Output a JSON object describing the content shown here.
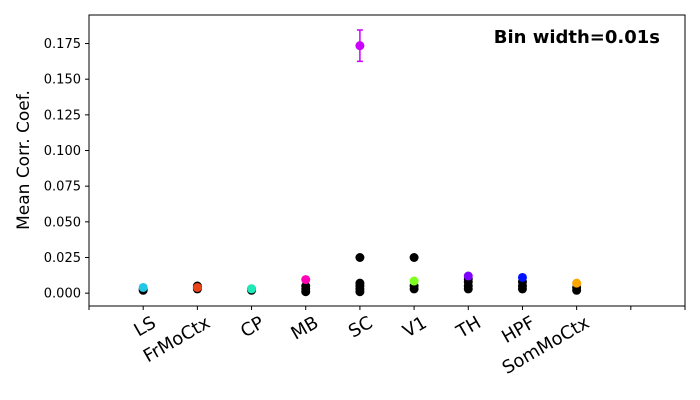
{
  "chart_data": {
    "type": "scatter",
    "title": "",
    "xlabel": "",
    "ylabel": "Mean Corr. Coef.",
    "annotation": "Bin width=0.01s",
    "annotation_position": "top-right",
    "grid": false,
    "legend": "none",
    "ylim": [
      -0.009,
      0.195
    ],
    "xlim": [
      -1,
      10
    ],
    "y_ticks": [
      "0.000",
      "0.025",
      "0.050",
      "0.075",
      "0.100",
      "0.125",
      "0.150",
      "0.175"
    ],
    "y_tick_values": [
      0.0,
      0.025,
      0.05,
      0.075,
      0.1,
      0.125,
      0.15,
      0.175
    ],
    "categories": [
      "LS",
      "FrMoCtx",
      "CP",
      "MB",
      "SC",
      "V1",
      "TH",
      "HPF",
      "SomMoCtx"
    ],
    "category_colors": [
      "#22c7e6",
      "#e8451a",
      "#1de9b6",
      "#ff00b4",
      "#cc00ff",
      "#7cff1e",
      "#7e00ff",
      "#0012ff",
      "#ffa500"
    ],
    "series": [
      {
        "color": "#000000",
        "points": [
          {
            "x": 0,
            "y": 0.002
          },
          {
            "x": 0,
            "y": 0.003
          },
          {
            "x": 1,
            "y": 0.003
          },
          {
            "x": 1,
            "y": 0.004
          },
          {
            "x": 1,
            "y": 0.005
          },
          {
            "x": 2,
            "y": 0.002
          },
          {
            "x": 2,
            "y": 0.003
          },
          {
            "x": 3,
            "y": 0.001
          },
          {
            "x": 3,
            "y": 0.003
          },
          {
            "x": 3,
            "y": 0.005
          },
          {
            "x": 4,
            "y": 0.025
          },
          {
            "x": 4,
            "y": 0.001
          },
          {
            "x": 4,
            "y": 0.003
          },
          {
            "x": 4,
            "y": 0.005
          },
          {
            "x": 4,
            "y": 0.007
          },
          {
            "x": 5,
            "y": 0.025
          },
          {
            "x": 5,
            "y": 0.003
          },
          {
            "x": 5,
            "y": 0.005
          },
          {
            "x": 6,
            "y": 0.003
          },
          {
            "x": 6,
            "y": 0.005
          },
          {
            "x": 6,
            "y": 0.008
          },
          {
            "x": 6,
            "y": 0.01
          },
          {
            "x": 7,
            "y": 0.003
          },
          {
            "x": 7,
            "y": 0.005
          },
          {
            "x": 7,
            "y": 0.008
          },
          {
            "x": 8,
            "y": 0.002
          },
          {
            "x": 8,
            "y": 0.004
          }
        ]
      },
      {
        "color": "per-category",
        "points": [
          {
            "x": 0,
            "y": 0.004,
            "yerr": 0.0
          },
          {
            "x": 1,
            "y": 0.004,
            "yerr": 0.0
          },
          {
            "x": 2,
            "y": 0.003,
            "yerr": 0.0
          },
          {
            "x": 3,
            "y": 0.0095,
            "yerr": 0.0
          },
          {
            "x": 4,
            "y": 0.1735,
            "yerr": 0.011
          },
          {
            "x": 5,
            "y": 0.0085,
            "yerr": 0.0
          },
          {
            "x": 6,
            "y": 0.012,
            "yerr": 0.0
          },
          {
            "x": 7,
            "y": 0.011,
            "yerr": 0.0
          },
          {
            "x": 8,
            "y": 0.007,
            "yerr": 0.0
          }
        ]
      }
    ]
  }
}
